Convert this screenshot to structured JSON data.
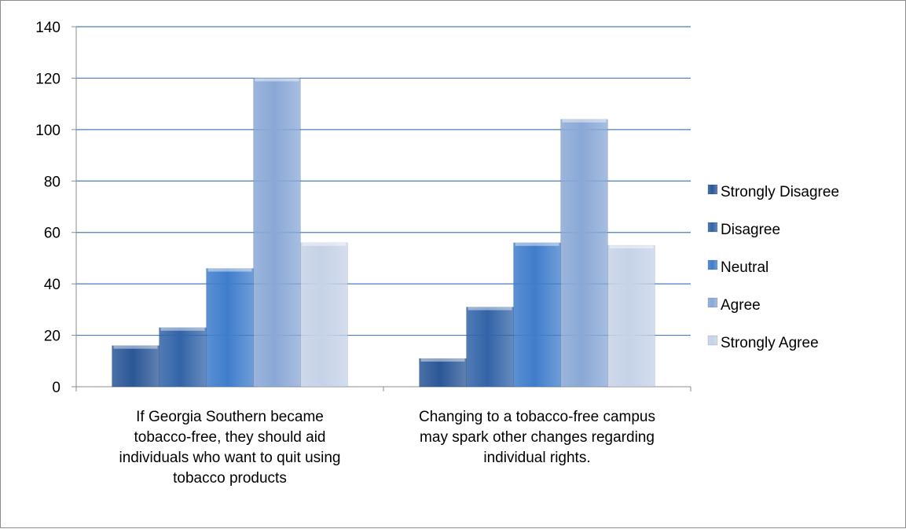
{
  "chart_data": {
    "type": "bar",
    "categories": [
      [
        "If Georgia Southern became",
        "tobacco-free, they should aid",
        "individuals who want to quit using",
        "tobacco products"
      ],
      [
        "Changing to a tobacco-free campus",
        "may spark other changes regarding",
        "individual rights."
      ]
    ],
    "series": [
      {
        "name": "Strongly Disagree",
        "values": [
          16,
          11
        ],
        "color": "#2b5797"
      },
      {
        "name": "Disagree",
        "values": [
          23,
          31
        ],
        "color": "#3364a8"
      },
      {
        "name": "Neutral",
        "values": [
          46,
          56
        ],
        "color": "#3f7dcc"
      },
      {
        "name": "Agree",
        "values": [
          120,
          104
        ],
        "color": "#8aa8d6"
      },
      {
        "name": "Strongly Agree",
        "values": [
          56,
          55
        ],
        "color": "#c6d2e8"
      }
    ],
    "ylim": [
      0,
      140
    ],
    "yticks": [
      0,
      20,
      40,
      60,
      80,
      100,
      120,
      140
    ],
    "grid": true,
    "legend_position": "right"
  }
}
